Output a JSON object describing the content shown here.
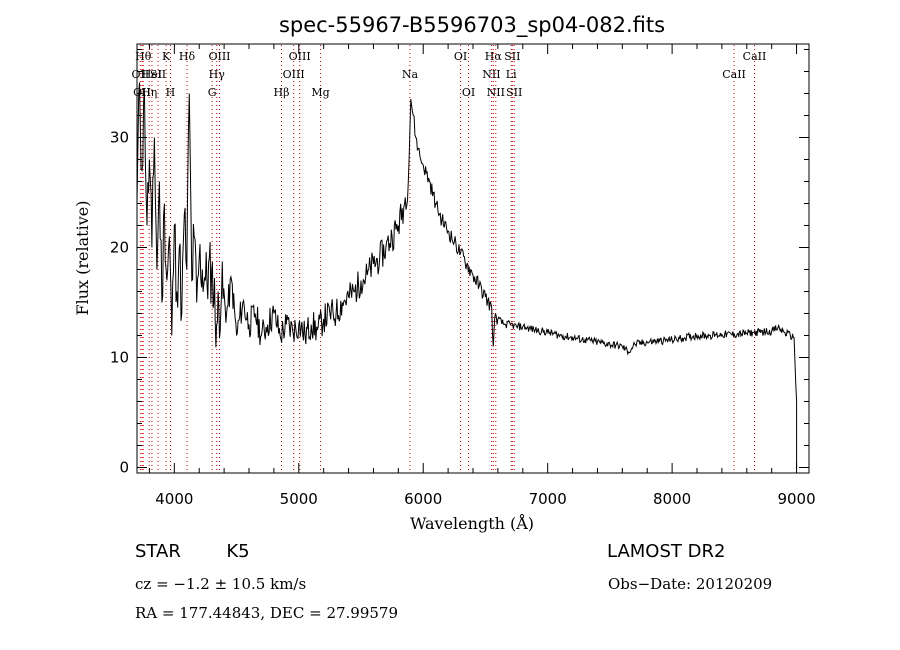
{
  "chart_data": {
    "type": "line",
    "title": "spec-55967-B5596703_sp04-082.fits",
    "xlabel": "Wavelength (Å)",
    "ylabel": "Flux (relative)",
    "xlim": [
      3700,
      9100
    ],
    "ylim": [
      -0.5,
      38.5
    ],
    "xticks": [
      4000,
      5000,
      6000,
      7000,
      8000,
      9000
    ],
    "yticks": [
      0,
      10,
      20,
      30
    ],
    "grid": false,
    "series": [
      {
        "x": [
          3700,
          3720,
          3740,
          3760,
          3780,
          3800,
          3820,
          3840,
          3860,
          3880,
          3900,
          3920,
          3940,
          3960,
          3980,
          4000,
          4020,
          4040,
          4060,
          4080,
          4100,
          4120,
          4140,
          4160,
          4180,
          4200,
          4250,
          4300,
          4340,
          4380,
          4420,
          4460,
          4500,
          4550,
          4600,
          4650,
          4700,
          4750,
          4800,
          4850,
          4900,
          4950,
          5000,
          5050,
          5100,
          5150,
          5200,
          5250,
          5300,
          5350,
          5400,
          5450,
          5500,
          5550,
          5600,
          5650,
          5700,
          5750,
          5800,
          5850,
          5880,
          5900,
          5920,
          5940,
          5960,
          5980,
          6000,
          6050,
          6100,
          6150,
          6200,
          6250,
          6300,
          6350,
          6400,
          6450,
          6500,
          6550,
          6563,
          6580,
          6600,
          6650,
          6700,
          6750,
          6800,
          6900,
          7000,
          7100,
          7200,
          7300,
          7400,
          7500,
          7600,
          7650,
          7700,
          7800,
          7900,
          8000,
          8100,
          8200,
          8300,
          8400,
          8500,
          8600,
          8700,
          8800,
          8850,
          8900,
          8950,
          8980,
          9000
        ],
        "y": [
          24,
          35,
          27,
          34,
          22,
          28,
          20,
          30,
          18,
          26,
          15,
          24,
          17,
          21,
          12,
          22,
          16,
          20,
          14,
          23,
          18,
          34,
          17,
          21,
          15,
          19,
          17,
          18,
          13,
          16,
          14,
          17,
          12,
          15,
          13,
          14,
          12,
          13,
          14,
          12,
          13,
          12.5,
          13,
          12,
          13,
          12.5,
          13.5,
          14,
          14,
          15,
          15.5,
          16,
          17,
          17.5,
          18.5,
          19,
          20,
          21,
          22,
          24,
          26,
          33.5,
          32,
          30,
          29,
          28,
          27.5,
          26,
          24,
          22.5,
          21.5,
          20.5,
          19.5,
          18.5,
          17.5,
          16.5,
          15.5,
          14.5,
          11,
          14,
          13.5,
          13,
          13,
          12.8,
          12.8,
          12.5,
          12.3,
          12,
          11.8,
          11.6,
          11.4,
          11.2,
          11,
          10.5,
          11.2,
          11.4,
          11.5,
          11.6,
          11.8,
          12,
          12,
          12.1,
          12.1,
          12.2,
          12.3,
          12.4,
          12.7,
          12.3,
          12,
          11.8,
          6
        ]
      }
    ],
    "lines": [
      {
        "wave": 3750,
        "label": "Hθ",
        "row": 1
      },
      {
        "wave": 3727,
        "label": "OII",
        "row": 2
      },
      {
        "wave": 3740,
        "label": "OII",
        "row": 3
      },
      {
        "wave": 3798,
        "label": "Hη",
        "row": 3
      },
      {
        "wave": 3820,
        "label": "HeI",
        "row": 2
      },
      {
        "wave": 3869,
        "label": "SII",
        "row": 2
      },
      {
        "wave": 3934,
        "label": "K",
        "row": 1
      },
      {
        "wave": 3969,
        "label": "H",
        "row": 3
      },
      {
        "wave": 4102,
        "label": "Hδ",
        "row": 1
      },
      {
        "wave": 4304,
        "label": "G",
        "row": 3
      },
      {
        "wave": 4341,
        "label": "Hγ",
        "row": 2
      },
      {
        "wave": 4363,
        "label": "OIII",
        "row": 1
      },
      {
        "wave": 4861,
        "label": "Hβ",
        "row": 3
      },
      {
        "wave": 4959,
        "label": "OIII",
        "row": 2
      },
      {
        "wave": 5007,
        "label": "OIII",
        "row": 1
      },
      {
        "wave": 5175,
        "label": "Mg",
        "row": 3
      },
      {
        "wave": 5893,
        "label": "Na",
        "row": 2
      },
      {
        "wave": 6300,
        "label": "OI",
        "row": 1
      },
      {
        "wave": 6364,
        "label": "OI",
        "row": 3
      },
      {
        "wave": 6548,
        "label": "NII",
        "row": 2
      },
      {
        "wave": 6563,
        "label": "Hα",
        "row": 1
      },
      {
        "wave": 6583,
        "label": "NII",
        "row": 3
      },
      {
        "wave": 6707,
        "label": "Li",
        "row": 2
      },
      {
        "wave": 6716,
        "label": "SII",
        "row": 1
      },
      {
        "wave": 6731,
        "label": "SII",
        "row": 3
      },
      {
        "wave": 8498,
        "label": "CaII",
        "row": 2
      },
      {
        "wave": 8662,
        "label": "CaII",
        "row": 1
      }
    ],
    "line_color": "#cc0000",
    "spectrum_color": "#000000"
  },
  "info": {
    "object": "STAR",
    "subclass": "K5",
    "survey": "LAMOST DR2",
    "cz": "cz = −1.2 ± 10.5 km/s",
    "obs_date": "Obs−Date: 20120209",
    "coords": "RA = 177.44843, DEC =  27.99579"
  }
}
